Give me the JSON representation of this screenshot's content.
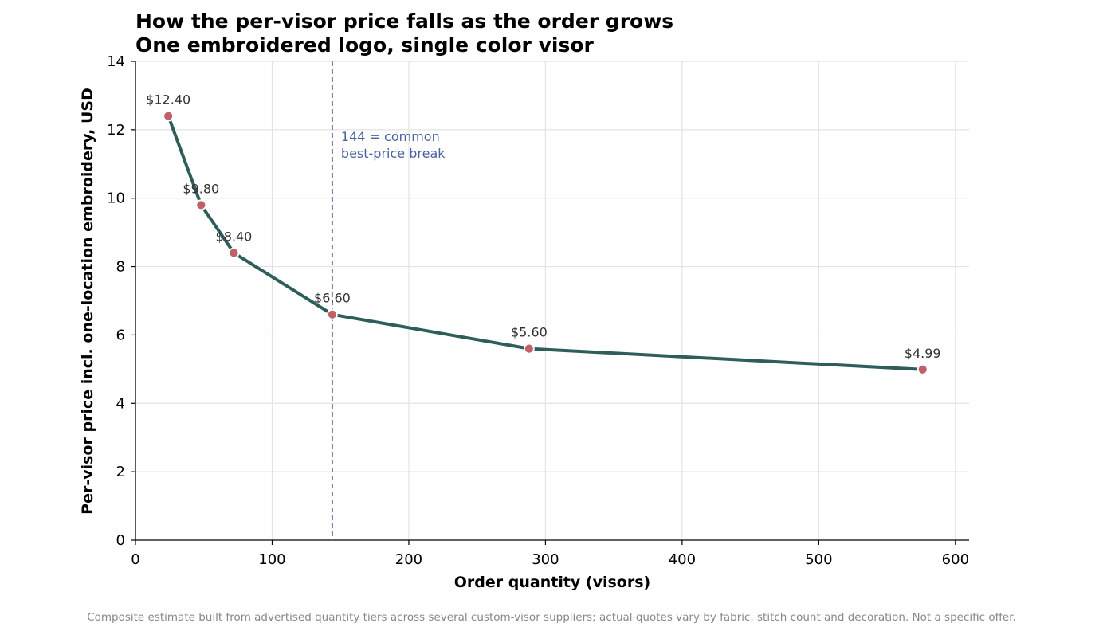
{
  "chart_data": {
    "type": "line",
    "title": "How the per-visor price falls as the order grows",
    "subtitle": "One embroidered logo, single color visor",
    "xlabel": "Order quantity (visors)",
    "ylabel": "Per-visor price incl. one-location embroidery, USD",
    "xlim": [
      0,
      610
    ],
    "ylim": [
      0,
      14
    ],
    "x_ticks": [
      0,
      100,
      200,
      300,
      400,
      500,
      600
    ],
    "y_ticks": [
      0,
      2,
      4,
      6,
      8,
      10,
      12,
      14
    ],
    "grid": true,
    "x": [
      24,
      48,
      72,
      144,
      288,
      576
    ],
    "series": [
      {
        "values": [
          12.4,
          9.8,
          8.4,
          6.6,
          5.6,
          4.99
        ]
      }
    ],
    "data_labels": [
      "$12.40",
      "$9.80",
      "$8.40",
      "$6.60",
      "$5.60",
      "$4.99"
    ],
    "reference_line": {
      "x": 144,
      "label_line1": "144 = common",
      "label_line2": "best-price break"
    },
    "colors": {
      "line": "#2e5e5a",
      "marker": "#c0616a",
      "reference": "#6b7faf",
      "reference_text": "#4a62a0"
    }
  },
  "footer": {
    "note": "Composite estimate built from advertised quantity tiers across several custom-visor suppliers; actual quotes vary by fabric, stitch count and decoration. Not a specific offer."
  }
}
